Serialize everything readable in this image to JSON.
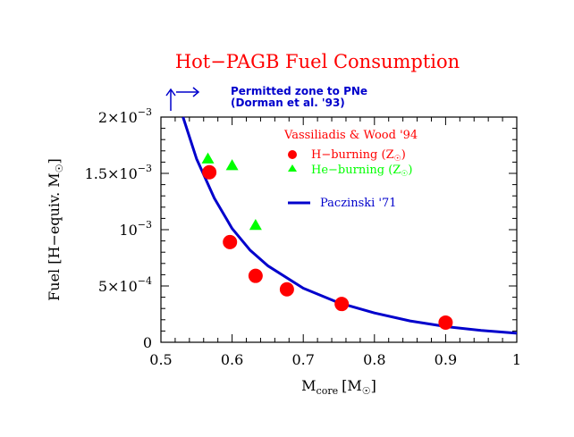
{
  "chart_data": {
    "type": "scatter",
    "title": "Hot−PAGB Fuel Consumption",
    "xlabel_main": "M",
    "xlabel_sub": "core",
    "xlabel_unit": "[M",
    "xlabel_close": "]",
    "ylabel": "Fuel   [H−equiv. M",
    "ylabel_close": "]",
    "xlim": [
      0.5,
      1.0
    ],
    "ylim": [
      0,
      0.002
    ],
    "xticks": [
      0.5,
      0.6,
      0.7,
      0.8,
      0.9,
      1.0
    ],
    "xtick_labels": [
      "0.5",
      "0.6",
      "0.7",
      "0.8",
      "0.9",
      "1"
    ],
    "yticks": [
      0,
      0.0005,
      0.001,
      0.0015,
      0.002
    ],
    "ytick_labels": [
      {
        "mant": "0",
        "exp": ""
      },
      {
        "mant": "5×10",
        "exp": "−4"
      },
      {
        "mant": "10",
        "exp": "−3"
      },
      {
        "mant": "1.5×10",
        "exp": "−3"
      },
      {
        "mant": "2×10",
        "exp": "−3"
      }
    ],
    "grid": false,
    "legend_position": "top-right",
    "legend_title": "Vassiliadis & Wood '94",
    "annotation_line1": "Permitted zone to PNe",
    "annotation_line2": "(Dorman et al. '93)",
    "annotation_x": 0.52,
    "series": [
      {
        "name": "H−burning (Z",
        "name_close": ")",
        "marker": "circle",
        "color": "#ff0000",
        "points": [
          {
            "x": 0.568,
            "y": 0.00151
          },
          {
            "x": 0.597,
            "y": 0.00089
          },
          {
            "x": 0.633,
            "y": 0.00059
          },
          {
            "x": 0.677,
            "y": 0.00047
          },
          {
            "x": 0.754,
            "y": 0.00034
          },
          {
            "x": 0.9,
            "y": 0.000175
          }
        ]
      },
      {
        "name": "He−burning (Z",
        "name_close": ")",
        "marker": "triangle",
        "color": "#00ff00",
        "points": [
          {
            "x": 0.566,
            "y": 0.00163
          },
          {
            "x": 0.6,
            "y": 0.00157
          },
          {
            "x": 0.633,
            "y": 0.00104
          }
        ]
      },
      {
        "name": "Paczinski '71",
        "marker": "line",
        "color": "#0000cc",
        "points": [
          {
            "x": 0.531,
            "y": 0.002
          },
          {
            "x": 0.55,
            "y": 0.00163
          },
          {
            "x": 0.575,
            "y": 0.00128
          },
          {
            "x": 0.6,
            "y": 0.00101
          },
          {
            "x": 0.625,
            "y": 0.00082
          },
          {
            "x": 0.65,
            "y": 0.00068
          },
          {
            "x": 0.7,
            "y": 0.00048
          },
          {
            "x": 0.75,
            "y": 0.00035
          },
          {
            "x": 0.8,
            "y": 0.00026
          },
          {
            "x": 0.85,
            "y": 0.00019
          },
          {
            "x": 0.9,
            "y": 0.00014
          },
          {
            "x": 0.95,
            "y": 0.000105
          },
          {
            "x": 1.0,
            "y": 8e-05
          }
        ]
      }
    ]
  },
  "colors": {
    "title": "#ff0000",
    "legend_title": "#ff0000",
    "annotation": "#0000cc",
    "axes": "#000000"
  }
}
